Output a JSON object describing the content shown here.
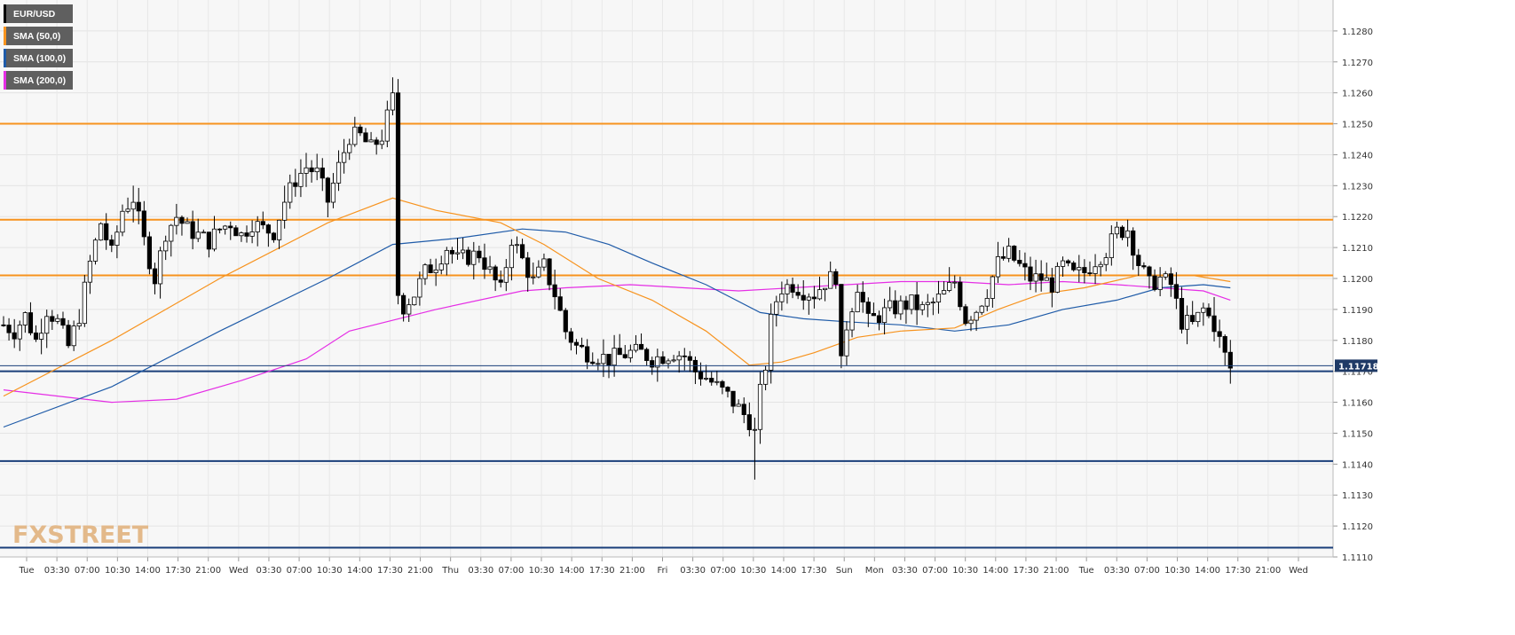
{
  "chart_data": {
    "type": "candlestick",
    "symbol": "EUR/USD",
    "y_range": [
      1.111,
      1.129
    ],
    "y_ticks": [
      "1.1280",
      "1.1270",
      "1.1260",
      "1.1250",
      "1.1240",
      "1.1230",
      "1.1220",
      "1.1210",
      "1.1200",
      "1.1190",
      "1.1180",
      "1.1170",
      "1.1160",
      "1.1150",
      "1.1140",
      "1.1130",
      "1.1120",
      "1.1110"
    ],
    "x_ticks": [
      "Tue",
      "03:30",
      "07:00",
      "10:30",
      "14:00",
      "17:30",
      "21:00",
      "Wed",
      "03:30",
      "07:00",
      "10:30",
      "14:00",
      "17:30",
      "21:00",
      "Thu",
      "03:30",
      "07:00",
      "10:30",
      "14:00",
      "17:30",
      "21:00",
      "Fri",
      "03:30",
      "07:00",
      "10:30",
      "14:00",
      "17:30",
      "Sun",
      "Mon",
      "03:30",
      "07:00",
      "10:30",
      "14:00",
      "17:30",
      "21:00",
      "Tue",
      "03:30",
      "07:00",
      "10:30",
      "14:00",
      "17:30",
      "21:00",
      "Wed"
    ],
    "current_price": "1.11718",
    "grid": true,
    "legend_position": "top-left",
    "series": [
      {
        "name": "EUR/USD",
        "color": "#000000"
      },
      {
        "name": "SMA (50,0)",
        "color": "#f7931e"
      },
      {
        "name": "SMA (100,0)",
        "color": "#1f5ba8"
      },
      {
        "name": "SMA (200,0)",
        "color": "#e52ee5"
      }
    ],
    "horizontal_levels": [
      {
        "value": 1.125,
        "color": "#f7931e"
      },
      {
        "value": 1.1219,
        "color": "#f7931e"
      },
      {
        "value": 1.1201,
        "color": "#f7931e"
      },
      {
        "value": 1.117,
        "color": "#1a3f7a"
      },
      {
        "value": 1.1141,
        "color": "#1a3f7a"
      },
      {
        "value": 1.1113,
        "color": "#1a3f7a"
      }
    ],
    "price_path": [
      [
        0,
        1.1185
      ],
      [
        2,
        1.1183
      ],
      [
        4,
        1.1188
      ],
      [
        6,
        1.118
      ],
      [
        8,
        1.119
      ],
      [
        10,
        1.1186
      ],
      [
        12,
        1.1178
      ],
      [
        14,
        1.1188
      ],
      [
        16,
        1.1205
      ],
      [
        18,
        1.1218
      ],
      [
        20,
        1.1208
      ],
      [
        22,
        1.1222
      ],
      [
        24,
        1.1226
      ],
      [
        26,
        1.1212
      ],
      [
        28,
        1.12
      ],
      [
        30,
        1.1215
      ],
      [
        32,
        1.122
      ],
      [
        34,
        1.1216
      ],
      [
        36,
        1.1214
      ],
      [
        38,
        1.1212
      ],
      [
        40,
        1.1216
      ],
      [
        42,
        1.1218
      ],
      [
        44,
        1.1214
      ],
      [
        46,
        1.1218
      ],
      [
        48,
        1.1216
      ],
      [
        50,
        1.1215
      ],
      [
        52,
        1.1225
      ],
      [
        54,
        1.1232
      ],
      [
        56,
        1.1236
      ],
      [
        58,
        1.1234
      ],
      [
        60,
        1.1225
      ],
      [
        62,
        1.1236
      ],
      [
        64,
        1.1246
      ],
      [
        66,
        1.1246
      ],
      [
        68,
        1.1242
      ],
      [
        70,
        1.1246
      ],
      [
        72,
        1.1258
      ],
      [
        73,
        1.1195
      ],
      [
        74,
        1.1191
      ],
      [
        76,
        1.1195
      ],
      [
        78,
        1.1202
      ],
      [
        80,
        1.1205
      ],
      [
        82,
        1.121
      ],
      [
        84,
        1.1206
      ],
      [
        86,
        1.1207
      ],
      [
        88,
        1.1208
      ],
      [
        90,
        1.1202
      ],
      [
        92,
        1.1196
      ],
      [
        94,
        1.1213
      ],
      [
        96,
        1.1206
      ],
      [
        98,
        1.1199
      ],
      [
        100,
        1.1204
      ],
      [
        102,
        1.1195
      ],
      [
        104,
        1.1183
      ],
      [
        106,
        1.1178
      ],
      [
        108,
        1.1176
      ],
      [
        110,
        1.1175
      ],
      [
        112,
        1.1174
      ],
      [
        114,
        1.1175
      ],
      [
        116,
        1.1176
      ],
      [
        118,
        1.1176
      ],
      [
        120,
        1.1174
      ],
      [
        122,
        1.1175
      ],
      [
        124,
        1.1176
      ],
      [
        126,
        1.1175
      ],
      [
        128,
        1.117
      ],
      [
        130,
        1.1168
      ],
      [
        132,
        1.1165
      ],
      [
        134,
        1.1162
      ],
      [
        136,
        1.1158
      ],
      [
        138,
        1.1154
      ],
      [
        139,
        1.115
      ],
      [
        140,
        1.1163
      ],
      [
        141,
        1.1172
      ],
      [
        142,
        1.1186
      ],
      [
        143,
        1.1193
      ],
      [
        144,
        1.1197
      ],
      [
        146,
        1.1198
      ],
      [
        148,
        1.1196
      ],
      [
        150,
        1.1195
      ],
      [
        152,
        1.1199
      ],
      [
        154,
        1.1201
      ],
      [
        155,
        1.1172
      ],
      [
        156,
        1.1185
      ],
      [
        158,
        1.1198
      ],
      [
        160,
        1.1186
      ],
      [
        162,
        1.1188
      ],
      [
        164,
        1.119
      ],
      [
        166,
        1.1191
      ],
      [
        168,
        1.1192
      ],
      [
        170,
        1.119
      ],
      [
        172,
        1.1192
      ],
      [
        174,
        1.1195
      ],
      [
        176,
        1.1199
      ],
      [
        178,
        1.1187
      ],
      [
        180,
        1.119
      ],
      [
        182,
        1.1196
      ],
      [
        184,
        1.1205
      ],
      [
        186,
        1.1208
      ],
      [
        188,
        1.1204
      ],
      [
        190,
        1.12
      ],
      [
        192,
        1.12
      ],
      [
        194,
        1.1198
      ],
      [
        196,
        1.1204
      ],
      [
        198,
        1.1201
      ],
      [
        200,
        1.1202
      ],
      [
        202,
        1.1206
      ],
      [
        204,
        1.1209
      ],
      [
        206,
        1.1215
      ],
      [
        208,
        1.1216
      ],
      [
        210,
        1.1205
      ],
      [
        212,
        1.1198
      ],
      [
        214,
        1.12
      ],
      [
        216,
        1.1198
      ],
      [
        218,
        1.1186
      ],
      [
        220,
        1.1185
      ],
      [
        222,
        1.119
      ],
      [
        224,
        1.1185
      ],
      [
        226,
        1.1175
      ],
      [
        227,
        1.1171
      ]
    ],
    "sma50": [
      [
        0,
        1.1162
      ],
      [
        20,
        1.118
      ],
      [
        40,
        1.12
      ],
      [
        60,
        1.1218
      ],
      [
        72,
        1.1226
      ],
      [
        80,
        1.1222
      ],
      [
        92,
        1.1218
      ],
      [
        100,
        1.1211
      ],
      [
        110,
        1.12
      ],
      [
        120,
        1.1193
      ],
      [
        130,
        1.1183
      ],
      [
        138,
        1.1172
      ],
      [
        144,
        1.1173
      ],
      [
        150,
        1.1176
      ],
      [
        158,
        1.1181
      ],
      [
        166,
        1.1183
      ],
      [
        176,
        1.1184
      ],
      [
        184,
        1.119
      ],
      [
        192,
        1.1195
      ],
      [
        200,
        1.1197
      ],
      [
        210,
        1.1201
      ],
      [
        220,
        1.1201
      ],
      [
        227,
        1.1199
      ]
    ],
    "sma100": [
      [
        0,
        1.1152
      ],
      [
        20,
        1.1165
      ],
      [
        40,
        1.1183
      ],
      [
        60,
        1.12
      ],
      [
        72,
        1.1211
      ],
      [
        84,
        1.1213
      ],
      [
        96,
        1.1216
      ],
      [
        104,
        1.1215
      ],
      [
        112,
        1.1211
      ],
      [
        120,
        1.1205
      ],
      [
        130,
        1.1198
      ],
      [
        140,
        1.1189
      ],
      [
        148,
        1.1187
      ],
      [
        156,
        1.1186
      ],
      [
        166,
        1.1185
      ],
      [
        176,
        1.1183
      ],
      [
        186,
        1.1185
      ],
      [
        196,
        1.119
      ],
      [
        206,
        1.1193
      ],
      [
        214,
        1.1197
      ],
      [
        222,
        1.1198
      ],
      [
        227,
        1.1197
      ]
    ],
    "sma200": [
      [
        0,
        1.1164
      ],
      [
        20,
        1.116
      ],
      [
        32,
        1.1161
      ],
      [
        44,
        1.1167
      ],
      [
        56,
        1.1174
      ],
      [
        64,
        1.1183
      ],
      [
        80,
        1.119
      ],
      [
        96,
        1.1196
      ],
      [
        104,
        1.1197
      ],
      [
        116,
        1.1198
      ],
      [
        136,
        1.1196
      ],
      [
        146,
        1.1197
      ],
      [
        156,
        1.1198
      ],
      [
        166,
        1.1199
      ],
      [
        176,
        1.1199
      ],
      [
        186,
        1.1198
      ],
      [
        196,
        1.1199
      ],
      [
        206,
        1.1198
      ],
      [
        214,
        1.1197
      ],
      [
        222,
        1.1196
      ],
      [
        227,
        1.1193
      ]
    ]
  },
  "watermark": {
    "text": "FXSTREET"
  }
}
